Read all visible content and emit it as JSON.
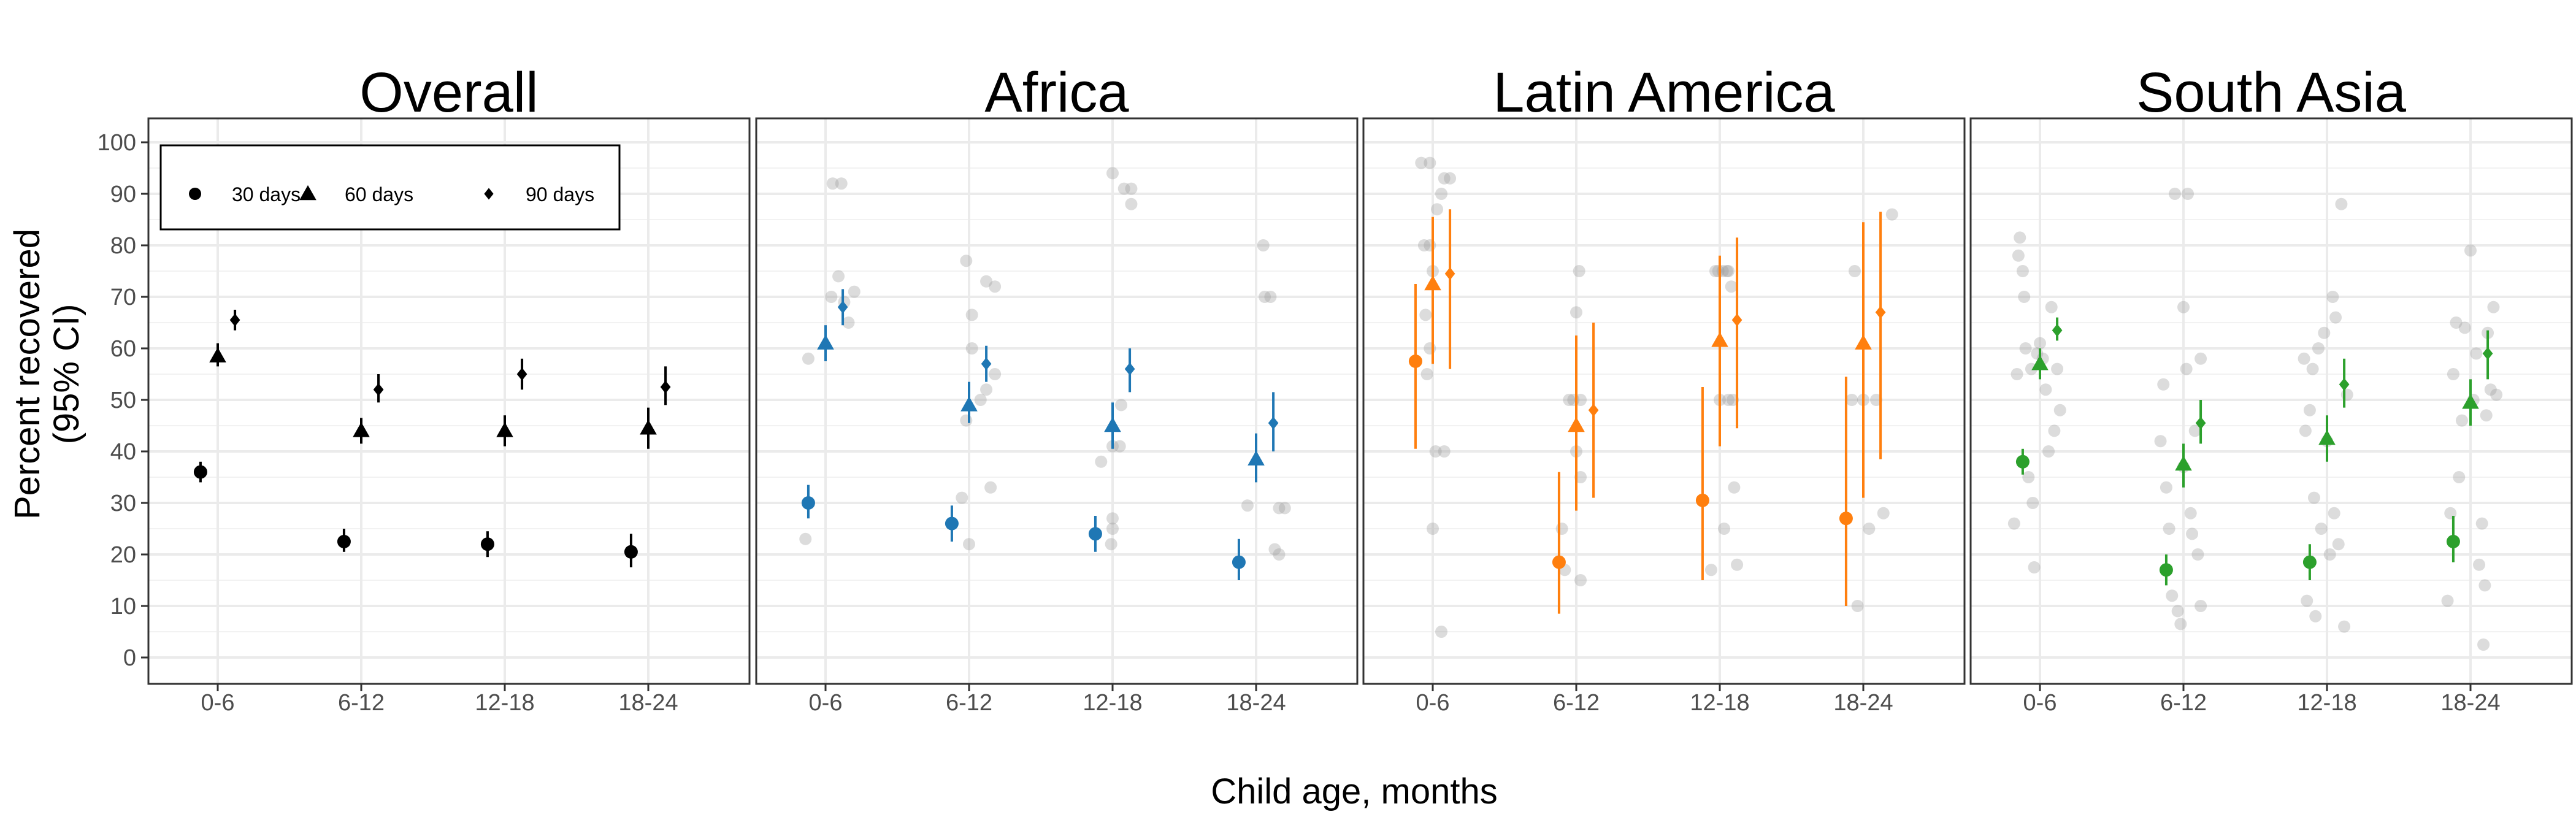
{
  "chart_data": {
    "type": "scatter",
    "ylabel_lines": [
      "Percent recovered",
      "(95% CI)"
    ],
    "xlabel": "Child age, months",
    "categories": [
      "0-6",
      "6-12",
      "12-18",
      "18-24"
    ],
    "ylim": [
      0,
      100
    ],
    "yticks": [
      0,
      10,
      20,
      30,
      40,
      50,
      60,
      70,
      80,
      90,
      100
    ],
    "grid": true,
    "legend_position": "top-left",
    "legend": [
      {
        "label": "30 days",
        "shape": "circle"
      },
      {
        "label": "60 days",
        "shape": "triangle"
      },
      {
        "label": "90 days",
        "shape": "diamond"
      }
    ],
    "panels": [
      {
        "title": "Overall",
        "color": "#000000",
        "series": [
          {
            "name": "30 days",
            "shape": "circle",
            "values": [
              36,
              22.5,
              22,
              20.5
            ],
            "ci_low": [
              34,
              20.5,
              19.5,
              17.5
            ],
            "ci_high": [
              38,
              25,
              24.5,
              24
            ]
          },
          {
            "name": "60 days",
            "shape": "triangle",
            "values": [
              58.5,
              44,
              44,
              44.5
            ],
            "ci_low": [
              56.5,
              41.5,
              41,
              40.5
            ],
            "ci_high": [
              61,
              46.5,
              47,
              48.5
            ]
          },
          {
            "name": "90 days",
            "shape": "diamond",
            "values": [
              65.5,
              52,
              55,
              52.5
            ],
            "ci_low": [
              63.5,
              49.5,
              52,
              49
            ],
            "ci_high": [
              67.5,
              55,
              58,
              56.5
            ]
          }
        ],
        "background_points": []
      },
      {
        "title": "Africa",
        "color": "#1f77b4",
        "series": [
          {
            "name": "30 days",
            "shape": "circle",
            "values": [
              30,
              26,
              24,
              18.5
            ],
            "ci_low": [
              27,
              22.5,
              20.5,
              15
            ],
            "ci_high": [
              33.5,
              29.5,
              27.5,
              23
            ]
          },
          {
            "name": "60 days",
            "shape": "triangle",
            "values": [
              61,
              49,
              45,
              38.5
            ],
            "ci_low": [
              57.5,
              45.5,
              40.5,
              34
            ],
            "ci_high": [
              64.5,
              53.5,
              49.5,
              43.5
            ]
          },
          {
            "name": "90 days",
            "shape": "diamond",
            "values": [
              68,
              57,
              56,
              45.5
            ],
            "ci_low": [
              64.5,
              53.5,
              51.5,
              40
            ],
            "ci_high": [
              71.5,
              60.5,
              60,
              51.5
            ]
          }
        ],
        "background_points": [
          [
            [
              -0.14,
              23
            ],
            [
              -0.12,
              58
            ],
            [
              0.04,
              70
            ],
            [
              0.05,
              92
            ],
            [
              0.11,
              92
            ],
            [
              0.09,
              74
            ],
            [
              0.13,
              69
            ],
            [
              0.16,
              65
            ],
            [
              0.2,
              71
            ]
          ],
          [
            [
              -0.05,
              31
            ],
            [
              -0.02,
              77
            ],
            [
              0.0,
              22
            ],
            [
              -0.02,
              46
            ],
            [
              0.02,
              60
            ],
            [
              0.02,
              66.5
            ],
            [
              0.08,
              50
            ],
            [
              0.12,
              52
            ],
            [
              0.12,
              73
            ],
            [
              0.15,
              33
            ],
            [
              0.18,
              72
            ],
            [
              0.18,
              55
            ]
          ],
          [
            [
              -0.08,
              38
            ],
            [
              -0.01,
              22
            ],
            [
              0.0,
              27
            ],
            [
              0.0,
              25
            ],
            [
              0.0,
              41
            ],
            [
              0.05,
              41
            ],
            [
              0.06,
              49
            ],
            [
              0.0,
              94
            ],
            [
              0.08,
              91
            ],
            [
              0.13,
              88
            ],
            [
              0.13,
              91
            ]
          ],
          [
            [
              -0.06,
              29.5
            ],
            [
              0.05,
              80
            ],
            [
              0.06,
              70
            ],
            [
              0.1,
              70
            ],
            [
              0.13,
              21
            ],
            [
              0.16,
              20
            ],
            [
              0.16,
              29
            ],
            [
              0.2,
              29
            ]
          ]
        ]
      },
      {
        "title": "Latin America",
        "color": "#ff7f0e",
        "series": [
          {
            "name": "30 days",
            "shape": "circle",
            "values": [
              57.5,
              18.5,
              30.5,
              27
            ],
            "ci_low": [
              40.5,
              8.5,
              15,
              10
            ],
            "ci_high": [
              72.5,
              36,
              52.5,
              54.5
            ]
          },
          {
            "name": "60 days",
            "shape": "triangle",
            "values": [
              72.5,
              45,
              61.5,
              61
            ],
            "ci_low": [
              57,
              28.5,
              41,
              31
            ],
            "ci_high": [
              85.5,
              62.5,
              78,
              84.5
            ]
          },
          {
            "name": "90 days",
            "shape": "diamond",
            "values": [
              74.5,
              48,
              65.5,
              67
            ],
            "ci_low": [
              56,
              31,
              44.5,
              38.5
            ],
            "ci_high": [
              87,
              65,
              81.5,
              86.5
            ]
          }
        ],
        "background_points": [
          [
            [
              -0.08,
              96
            ],
            [
              -0.06,
              80
            ],
            [
              -0.05,
              66.5
            ],
            [
              -0.04,
              55
            ],
            [
              -0.02,
              80
            ],
            [
              -0.02,
              60
            ],
            [
              -0.02,
              96
            ],
            [
              0.0,
              75
            ],
            [
              0.0,
              25
            ],
            [
              0.02,
              40
            ],
            [
              0.03,
              87
            ],
            [
              0.06,
              90
            ],
            [
              0.06,
              5
            ],
            [
              0.08,
              93
            ],
            [
              0.08,
              40
            ],
            [
              0.12,
              93
            ]
          ],
          [
            [
              -0.1,
              25
            ],
            [
              -0.08,
              17
            ],
            [
              -0.05,
              50
            ],
            [
              -0.02,
              50
            ],
            [
              0.0,
              67
            ],
            [
              0.0,
              40
            ],
            [
              0.02,
              75
            ],
            [
              0.03,
              50
            ],
            [
              0.03,
              35
            ],
            [
              0.03,
              15
            ]
          ],
          [
            [
              -0.06,
              17
            ],
            [
              -0.03,
              75
            ],
            [
              -0.01,
              75
            ],
            [
              0.0,
              50
            ],
            [
              0.02,
              75
            ],
            [
              0.03,
              25
            ],
            [
              0.05,
              75
            ],
            [
              0.06,
              50
            ],
            [
              0.06,
              75
            ],
            [
              0.08,
              72
            ],
            [
              0.09,
              50
            ],
            [
              0.1,
              33
            ],
            [
              0.12,
              18
            ]
          ],
          [
            [
              -0.08,
              50
            ],
            [
              -0.06,
              75
            ],
            [
              -0.04,
              10
            ],
            [
              0.0,
              50
            ],
            [
              0.04,
              25
            ],
            [
              0.09,
              50
            ],
            [
              0.14,
              28
            ],
            [
              0.2,
              86
            ]
          ]
        ]
      },
      {
        "title": "South Asia",
        "color": "#2ca02c",
        "series": [
          {
            "name": "30 days",
            "shape": "circle",
            "values": [
              38,
              17,
              18.5,
              22.5
            ],
            "ci_low": [
              35.5,
              14,
              15,
              18.5
            ],
            "ci_high": [
              40.5,
              20,
              22,
              27.5
            ]
          },
          {
            "name": "60 days",
            "shape": "triangle",
            "values": [
              57,
              37.5,
              42.5,
              49.5
            ],
            "ci_low": [
              54,
              33,
              38,
              45
            ],
            "ci_high": [
              60,
              41.5,
              47,
              54
            ]
          },
          {
            "name": "90 days",
            "shape": "diamond",
            "values": [
              63.5,
              45.5,
              53,
              59
            ],
            "ci_low": [
              61.5,
              41.5,
              48.5,
              54
            ],
            "ci_high": [
              66,
              50,
              58,
              63.5
            ]
          }
        ],
        "background_points": [
          [
            [
              -0.18,
              26
            ],
            [
              -0.16,
              55
            ],
            [
              -0.15,
              78
            ],
            [
              -0.14,
              81.5
            ],
            [
              -0.12,
              75
            ],
            [
              -0.11,
              70
            ],
            [
              -0.1,
              60
            ],
            [
              -0.08,
              35
            ],
            [
              -0.06,
              56
            ],
            [
              -0.05,
              30
            ],
            [
              -0.04,
              17.5
            ],
            [
              -0.02,
              59
            ],
            [
              0.0,
              61
            ],
            [
              0.02,
              58
            ],
            [
              0.04,
              52
            ],
            [
              0.06,
              40
            ],
            [
              0.08,
              68
            ],
            [
              0.1,
              44
            ],
            [
              0.12,
              56
            ],
            [
              0.14,
              48
            ]
          ],
          [
            [
              -0.16,
              42
            ],
            [
              -0.14,
              53
            ],
            [
              -0.12,
              33
            ],
            [
              -0.1,
              25
            ],
            [
              -0.08,
              12
            ],
            [
              -0.06,
              90
            ],
            [
              -0.04,
              9
            ],
            [
              -0.02,
              6.5
            ],
            [
              0.0,
              37
            ],
            [
              0.0,
              68
            ],
            [
              0.02,
              56
            ],
            [
              0.03,
              90
            ],
            [
              0.05,
              28
            ],
            [
              0.06,
              24
            ],
            [
              0.08,
              44
            ],
            [
              0.1,
              20
            ],
            [
              0.12,
              10
            ],
            [
              0.12,
              58
            ]
          ],
          [
            [
              -0.16,
              58
            ],
            [
              -0.15,
              44
            ],
            [
              -0.14,
              11
            ],
            [
              -0.12,
              48
            ],
            [
              -0.1,
              56
            ],
            [
              -0.09,
              31
            ],
            [
              -0.08,
              8
            ],
            [
              -0.06,
              60
            ],
            [
              -0.04,
              25
            ],
            [
              -0.02,
              63
            ],
            [
              0.0,
              42
            ],
            [
              0.02,
              20
            ],
            [
              0.04,
              70
            ],
            [
              0.05,
              28
            ],
            [
              0.06,
              66
            ],
            [
              0.08,
              22
            ],
            [
              0.1,
              88
            ],
            [
              0.12,
              6
            ],
            [
              0.14,
              51
            ]
          ],
          [
            [
              -0.16,
              11
            ],
            [
              -0.14,
              28
            ],
            [
              -0.12,
              55
            ],
            [
              -0.1,
              65
            ],
            [
              -0.08,
              35
            ],
            [
              -0.06,
              46
            ],
            [
              -0.04,
              64
            ],
            [
              0.0,
              79
            ],
            [
              0.02,
              50
            ],
            [
              0.04,
              59
            ],
            [
              0.06,
              18
            ],
            [
              0.08,
              26
            ],
            [
              0.09,
              2.5
            ],
            [
              0.1,
              14
            ],
            [
              0.11,
              47
            ],
            [
              0.12,
              63
            ],
            [
              0.14,
              52
            ],
            [
              0.16,
              68
            ],
            [
              0.18,
              51
            ]
          ]
        ]
      }
    ]
  }
}
